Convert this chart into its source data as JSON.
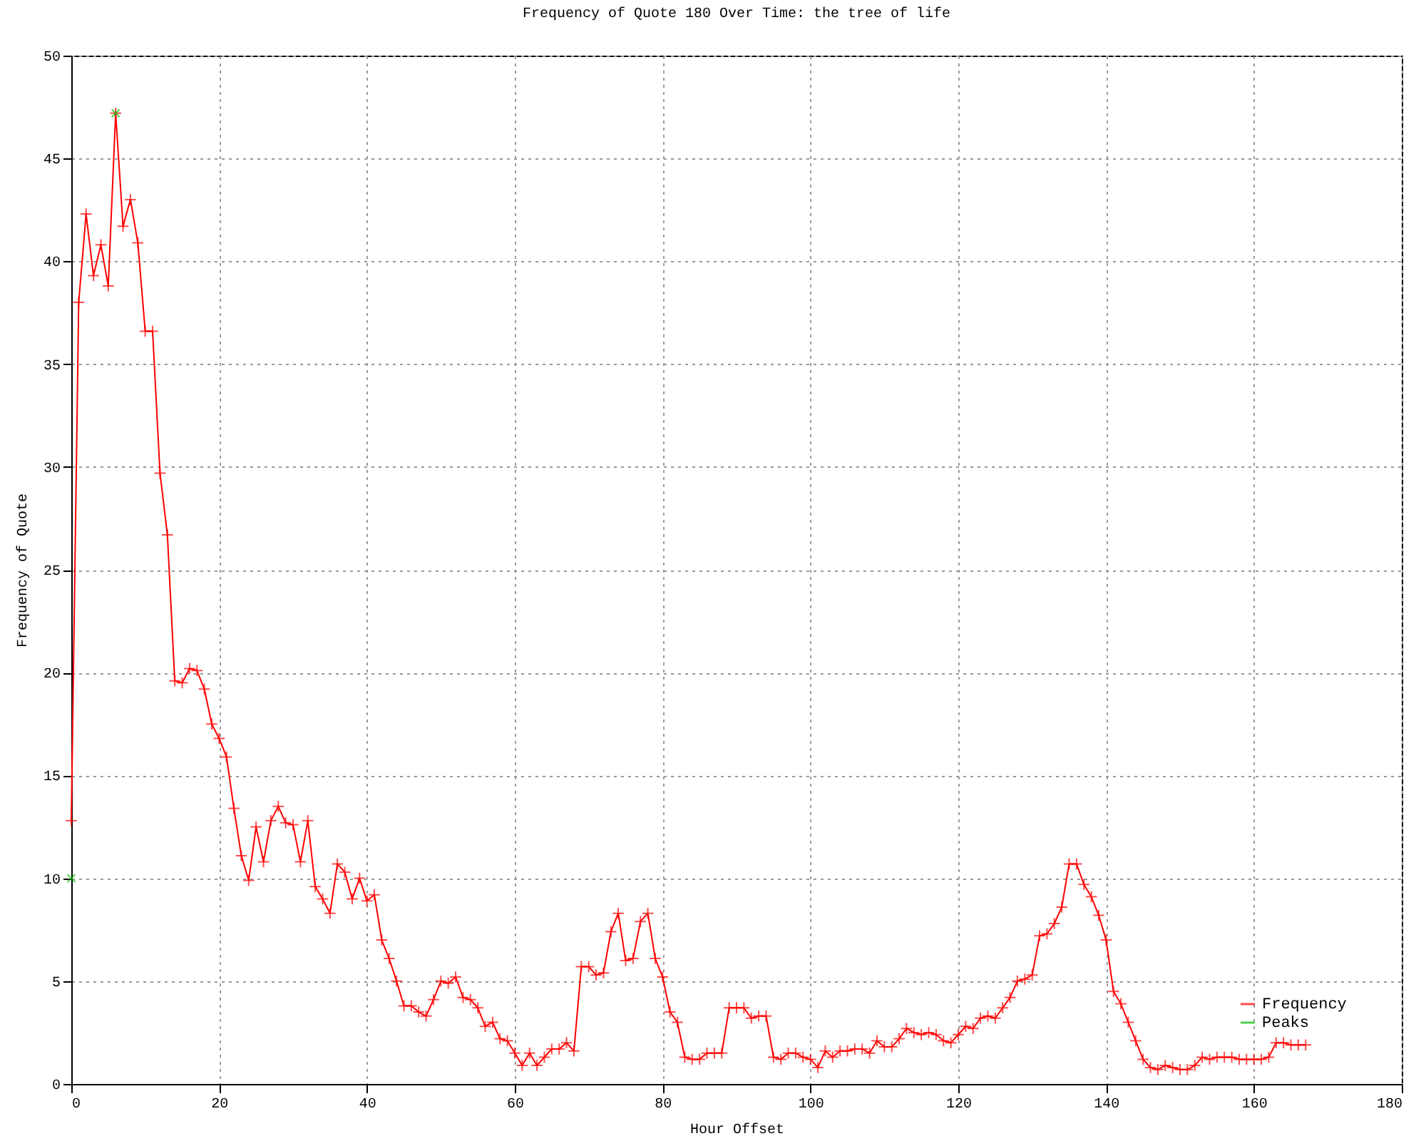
{
  "chart_data": {
    "type": "line",
    "title": "Frequency of Quote 180 Over Time: the tree of life",
    "xlabel": "Hour Offset",
    "ylabel": "Frequency of Quote",
    "xlim": [
      0,
      180
    ],
    "xticks": [
      0,
      20,
      40,
      60,
      80,
      100,
      120,
      140,
      160,
      180
    ],
    "ylim": [
      0,
      50
    ],
    "yticks": [
      0,
      5,
      10,
      15,
      20,
      25,
      30,
      35,
      40,
      45,
      50
    ],
    "grid": true,
    "legend": "bottom right",
    "marker": "cross",
    "series": [
      {
        "name": "Frequency",
        "color": "#ff0000",
        "x": [
          0,
          1,
          2,
          3,
          4,
          5,
          6,
          7,
          8,
          9,
          10,
          11,
          12,
          13,
          14,
          15,
          16,
          17,
          18,
          19,
          20,
          21,
          22,
          23,
          24,
          25,
          26,
          27,
          28,
          29,
          30,
          31,
          32,
          33,
          34,
          35,
          36,
          37,
          38,
          39,
          40,
          41,
          42,
          43,
          44,
          45,
          46,
          47,
          48,
          49,
          50,
          51,
          52,
          53,
          54,
          55,
          56,
          57,
          58,
          59,
          60,
          61,
          62,
          63,
          64,
          65,
          66,
          67,
          68,
          69,
          70,
          71,
          72,
          73,
          74,
          75,
          76,
          77,
          78,
          79,
          80,
          81,
          82,
          83,
          84,
          85,
          86,
          87,
          88,
          89,
          90,
          91,
          92,
          93,
          94,
          95,
          96,
          97,
          98,
          99,
          100,
          101,
          102,
          103,
          104,
          105,
          106,
          107,
          108,
          109,
          110,
          111,
          112,
          113,
          114,
          115,
          116,
          117,
          118,
          119,
          120,
          121,
          122,
          123,
          124,
          125,
          126,
          127,
          128,
          129,
          130,
          131,
          132,
          133,
          134,
          135,
          136,
          137,
          138,
          139,
          140,
          141,
          142,
          143,
          144,
          145,
          146,
          147,
          148,
          149,
          150,
          151,
          152,
          153,
          154,
          155,
          156,
          157,
          158,
          159,
          160,
          161,
          162,
          163,
          164,
          165,
          166,
          167
        ],
        "values": [
          12.8,
          38.0,
          42.3,
          39.3,
          40.8,
          38.8,
          47.2,
          41.7,
          43.0,
          40.9,
          36.6,
          36.6,
          29.7,
          26.7,
          19.6,
          19.5,
          20.2,
          20.1,
          19.2,
          17.5,
          16.8,
          15.9,
          13.4,
          11.1,
          9.9,
          12.5,
          10.8,
          12.8,
          13.5,
          12.7,
          12.6,
          10.8,
          12.8,
          9.6,
          9.0,
          8.3,
          10.7,
          10.3,
          9.0,
          10.0,
          8.9,
          9.2,
          7.0,
          6.1,
          5.0,
          3.8,
          3.8,
          3.5,
          3.3,
          4.1,
          5.0,
          4.9,
          5.2,
          4.2,
          4.1,
          3.7,
          2.8,
          3.0,
          2.2,
          2.1,
          1.5,
          0.9,
          1.5,
          0.9,
          1.3,
          1.7,
          1.7,
          2.0,
          1.6,
          5.7,
          5.7,
          5.3,
          5.4,
          7.4,
          8.3,
          6.0,
          6.1,
          7.9,
          8.3,
          6.1,
          5.2,
          3.5,
          3.0,
          1.3,
          1.2,
          1.2,
          1.5,
          1.5,
          1.5,
          3.7,
          3.7,
          3.7,
          3.2,
          3.3,
          3.3,
          1.3,
          1.2,
          1.5,
          1.5,
          1.3,
          1.2,
          0.8,
          1.6,
          1.3,
          1.6,
          1.6,
          1.7,
          1.7,
          1.5,
          2.1,
          1.8,
          1.8,
          2.2,
          2.7,
          2.5,
          2.4,
          2.5,
          2.4,
          2.1,
          2.0,
          2.4,
          2.8,
          2.7,
          3.2,
          3.3,
          3.2,
          3.7,
          4.2,
          5.0,
          5.1,
          5.3,
          7.2,
          7.3,
          7.8,
          8.6,
          10.7,
          10.7,
          9.7,
          9.1,
          8.2,
          7.0,
          4.5,
          3.9,
          3.0,
          2.1,
          1.2,
          0.8,
          0.7,
          0.9,
          0.8,
          0.7,
          0.7,
          0.9,
          1.3,
          1.2,
          1.3,
          1.3,
          1.3,
          1.2,
          1.2,
          1.2,
          1.2,
          1.3,
          2.0,
          2.0,
          1.9,
          1.9,
          1.9
        ]
      },
      {
        "name": "Peaks",
        "type": "scatter",
        "color": "#00c000",
        "x": [
          0,
          6
        ],
        "values": [
          10,
          47.2
        ]
      }
    ]
  }
}
